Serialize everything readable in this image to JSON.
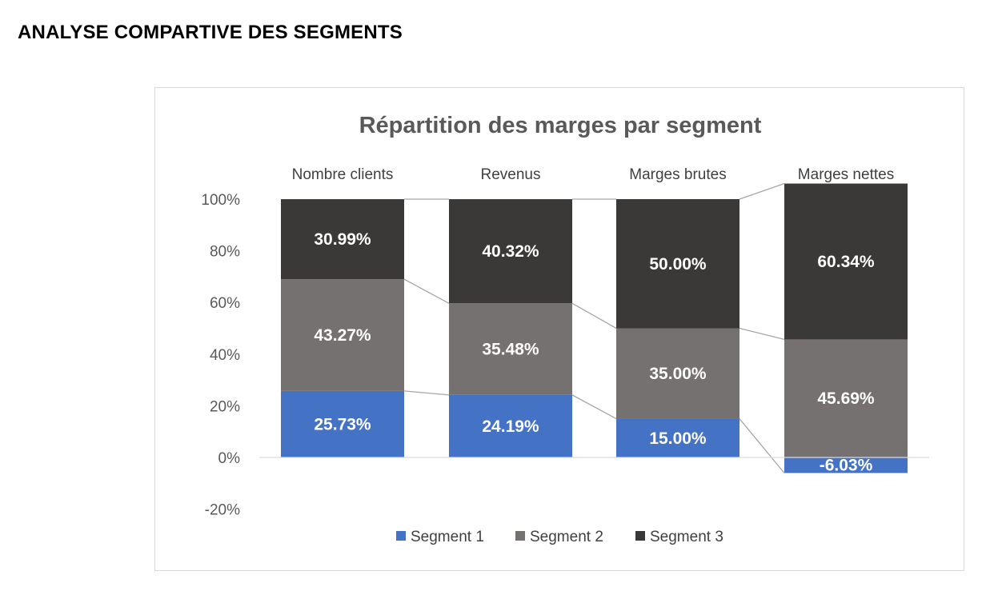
{
  "page": {
    "title": "ANALYSE COMPARTIVE DES SEGMENTS"
  },
  "colors": {
    "segment_1": "#4472c4",
    "segment_2": "#767171",
    "segment_3": "#3b3838",
    "series_lines": "#a6a6a6",
    "axis": "#d9d9d9"
  },
  "chart_data": {
    "type": "bar",
    "stacked": true,
    "title": "Répartition des marges par segment",
    "categories": [
      "Nombre clients",
      "Revenus",
      "Marges brutes",
      "Marges nettes"
    ],
    "category_labels_position": "top",
    "series": [
      {
        "name": "Segment 1",
        "values": [
          25.73,
          24.19,
          15.0,
          -6.03
        ],
        "labels": [
          "25.73%",
          "24.19%",
          "15.00%",
          "-6.03%"
        ]
      },
      {
        "name": "Segment 2",
        "values": [
          43.27,
          35.48,
          35.0,
          45.69
        ],
        "labels": [
          "43.27%",
          "35.48%",
          "35.00%",
          "45.69%"
        ]
      },
      {
        "name": "Segment 3",
        "values": [
          30.99,
          40.32,
          50.0,
          60.34
        ],
        "labels": [
          "30.99%",
          "40.32%",
          "50.00%",
          "60.34%"
        ]
      }
    ],
    "y_ticks": [
      "100%",
      "80%",
      "60%",
      "40%",
      "20%",
      "0%",
      "-20%"
    ],
    "ylim": [
      -20,
      100
    ],
    "series_lines": true,
    "grid": false,
    "legend": "bottom"
  }
}
